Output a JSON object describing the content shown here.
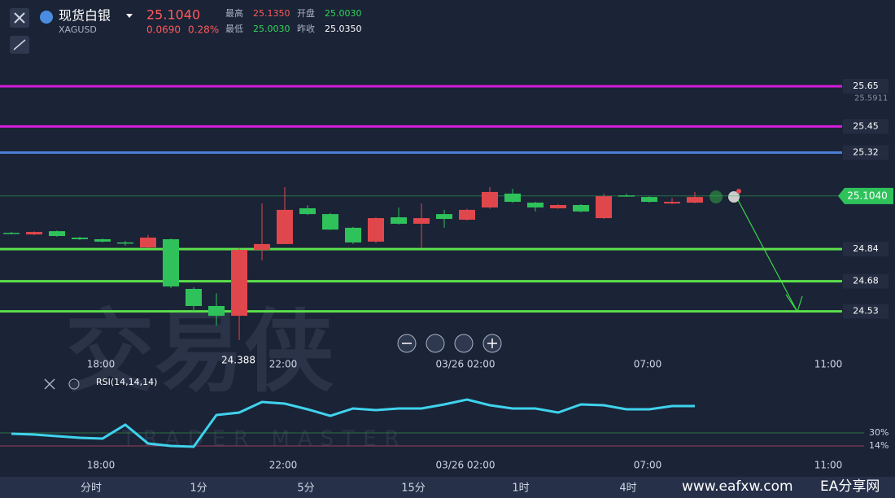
{
  "header": {
    "name": "现货白银",
    "symbol": "XAGUSD",
    "change": "0.0690",
    "change_pct": "0.28%",
    "stats": [
      {
        "label": "最高",
        "value": "25.1350",
        "up": true
      },
      {
        "label": "开盘",
        "value": "25.0030",
        "up": false
      },
      {
        "label": "最低",
        "value": "25.0030",
        "up": false
      },
      {
        "label": "昨收",
        "value": "25.0350",
        "up": null
      }
    ]
  },
  "price_chart": {
    "type": "candlestick",
    "ylim": [
      24.217,
      26.079
    ],
    "up_color": "#e0474c",
    "down_color": "#2fc25b",
    "last_price": {
      "value": 25.104,
      "label": "25.1040"
    },
    "axis_labels": [
      25.5911
    ],
    "low_label": {
      "value": 24.388,
      "label": "24.388"
    },
    "levels": [
      {
        "value": 25.65,
        "color": "#d41ddb"
      },
      {
        "value": 25.45,
        "color": "#d41ddb"
      },
      {
        "value": 25.32,
        "color": "#4a7fd4"
      },
      {
        "value": 24.84,
        "color": "#5be04b"
      },
      {
        "value": 24.68,
        "color": "#5be04b"
      },
      {
        "value": 24.53,
        "color": "#5be04b"
      }
    ],
    "candles": [
      [
        24.921,
        24.925,
        24.913,
        24.917
      ],
      [
        24.913,
        24.928,
        24.909,
        24.925
      ],
      [
        24.929,
        24.933,
        24.901,
        24.905
      ],
      [
        24.897,
        24.901,
        24.885,
        24.889
      ],
      [
        24.889,
        24.893,
        24.873,
        24.877
      ],
      [
        24.873,
        24.881,
        24.857,
        24.869
      ],
      [
        24.848,
        24.91,
        24.844,
        24.897
      ],
      [
        24.889,
        24.893,
        24.646,
        24.654
      ],
      [
        24.642,
        24.65,
        24.529,
        24.557
      ],
      [
        24.557,
        24.62,
        24.46,
        24.508
      ],
      [
        24.508,
        24.844,
        24.388,
        24.836
      ],
      [
        24.836,
        25.067,
        24.784,
        24.865
      ],
      [
        24.865,
        25.148,
        24.865,
        25.035
      ],
      [
        25.043,
        25.059,
        25.01,
        25.014
      ],
      [
        25.014,
        25.02,
        24.935,
        24.937
      ],
      [
        24.946,
        24.95,
        24.865,
        24.873
      ],
      [
        24.877,
        24.998,
        24.87,
        24.994
      ],
      [
        24.998,
        25.047,
        24.962,
        24.966
      ],
      [
        24.966,
        25.067,
        24.844,
        24.994
      ],
      [
        25.014,
        25.035,
        24.946,
        24.99
      ],
      [
        24.986,
        25.04,
        24.982,
        25.035
      ],
      [
        25.047,
        25.148,
        25.04,
        25.124
      ],
      [
        25.116,
        25.14,
        25.07,
        25.075
      ],
      [
        25.071,
        25.075,
        25.027,
        25.047
      ],
      [
        25.043,
        25.063,
        25.04,
        25.059
      ],
      [
        25.059,
        25.063,
        25.023,
        25.027
      ],
      [
        24.994,
        25.116,
        24.99,
        25.103
      ],
      [
        25.107,
        25.115,
        25.1,
        25.105
      ],
      [
        25.099,
        25.103,
        25.071,
        25.075
      ],
      [
        25.067,
        25.095,
        25.063,
        25.075
      ],
      [
        25.071,
        25.124,
        25.067,
        25.099
      ]
    ],
    "times": [
      "18:00",
      "22:00",
      "03/26 02:00",
      "07:00",
      "11:00"
    ]
  },
  "rsi_chart": {
    "type": "line",
    "title": "RSI(14,14,14)",
    "ylim": [
      0,
      100
    ],
    "color": "#3fd3ee",
    "values": [
      29,
      28,
      26,
      24,
      23,
      40,
      17,
      14,
      13,
      52,
      55,
      68,
      66,
      59,
      51,
      60,
      58,
      60,
      60,
      65,
      71,
      64,
      60,
      60,
      55,
      65,
      64,
      59,
      59,
      63,
      63
    ],
    "levels": [
      {
        "value": 30,
        "label": "30%"
      },
      {
        "value": 14,
        "label": "14%"
      }
    ],
    "times": [
      "18:00",
      "22:00",
      "03/26 02:00",
      "07:00",
      "11:00"
    ]
  },
  "tabs": [
    "分时",
    "1分",
    "5分",
    "15分",
    "1时",
    "4时"
  ],
  "watermark": {
    "main": "交易侠",
    "sub": "TRADER MASTER",
    "site": "www.eafxw.com",
    "site_name": "EA分享网"
  }
}
